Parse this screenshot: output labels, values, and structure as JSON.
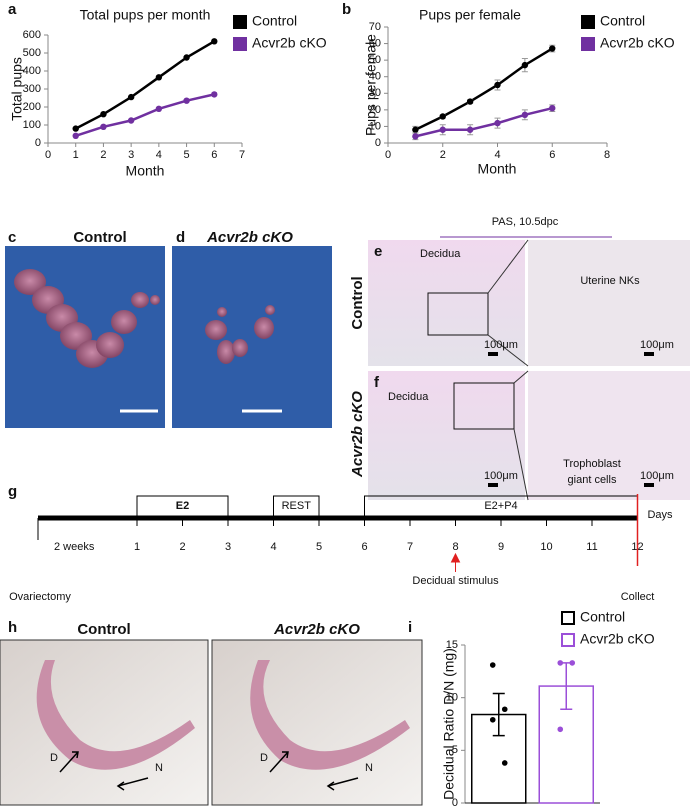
{
  "chart_data": [
    {
      "type": "line",
      "panel": "a",
      "title": "Total pups per month",
      "xlabel": "Month",
      "ylabel": "Total pups",
      "x": [
        1,
        2,
        3,
        4,
        5,
        6
      ],
      "xlim": [
        0,
        7
      ],
      "xticks": [
        0,
        1,
        2,
        3,
        4,
        5,
        6,
        7
      ],
      "ylim": [
        0,
        600
      ],
      "yticks": [
        0,
        100,
        200,
        300,
        400,
        500,
        600
      ],
      "series": [
        {
          "name": "Control",
          "color": "#000000",
          "values": [
            80,
            160,
            255,
            365,
            475,
            565
          ]
        },
        {
          "name": "Acvr2b cKO",
          "color": "#7030a0",
          "values": [
            40,
            90,
            125,
            190,
            235,
            270
          ]
        }
      ]
    },
    {
      "type": "line",
      "panel": "b",
      "title": "Pups per female",
      "xlabel": "Month",
      "ylabel": "Pups per female",
      "x": [
        1,
        2,
        3,
        4,
        5,
        6
      ],
      "xlim": [
        0,
        8
      ],
      "xticks": [
        0,
        2,
        4,
        6,
        8
      ],
      "ylim": [
        0,
        70
      ],
      "yticks": [
        0,
        10,
        20,
        30,
        40,
        50,
        60,
        70
      ],
      "series": [
        {
          "name": "Control",
          "color": "#000000",
          "values": [
            8,
            16,
            25,
            35,
            47,
            57
          ],
          "errors": [
            2,
            1,
            1,
            3,
            4,
            2
          ]
        },
        {
          "name": "Acvr2b cKO",
          "color": "#7030a0",
          "values": [
            4,
            8,
            8,
            12,
            17,
            21
          ],
          "errors": [
            2,
            3,
            3,
            3,
            3,
            2
          ]
        }
      ]
    },
    {
      "type": "bar",
      "panel": "i",
      "ylabel": "Decidual Ratio D/N (mg)",
      "ylim": [
        0,
        15
      ],
      "yticks": [
        0,
        5,
        10,
        15
      ],
      "series": [
        {
          "name": "Control",
          "color": "#000000",
          "values": [
            8.4
          ],
          "errors": [
            2.0
          ],
          "points": [
            13.1,
            8.9,
            7.9,
            3.8
          ]
        },
        {
          "name": "Acvr2b cKO",
          "color": "#9b4fd8",
          "values": [
            11.1
          ],
          "errors": [
            2.2
          ],
          "points": [
            13.3,
            13.3,
            7.0
          ]
        }
      ]
    }
  ],
  "uterus_photos": [
    {
      "panel": "c",
      "title": "Control"
    },
    {
      "panel": "d",
      "title": "Acvr2b cKO"
    }
  ],
  "histology": {
    "title": "PAS, 10.5dpc",
    "scale_label": "100μm",
    "rows": [
      {
        "panel": "e",
        "genotype": "Control",
        "region": "Decidua",
        "detail": [
          "Uterine NKs"
        ]
      },
      {
        "panel": "f",
        "genotype": "Acvr2b cKO",
        "region": "Decidua",
        "detail": [
          "Trophoblast",
          "giant cells"
        ]
      }
    ]
  },
  "timeline": {
    "panel": "g",
    "pre_label": "2 weeks",
    "unit": "Days",
    "days": [
      1,
      2,
      3,
      4,
      5,
      6,
      7,
      8,
      9,
      10,
      11,
      12
    ],
    "phases": [
      {
        "label": "E2",
        "start": 1,
        "end": 3
      },
      {
        "label": "REST",
        "start": 4,
        "end": 5
      },
      {
        "label": "E2+P4",
        "start": 6,
        "end": 12
      }
    ],
    "start_event": "Ovariectomy",
    "stimulus": {
      "label": "Decidual stimulus",
      "day": 8
    },
    "collect": {
      "label": "Collect",
      "day": 12
    }
  },
  "decidua_photos": {
    "panel": "h",
    "titles": [
      "Control",
      "Acvr2b cKO"
    ],
    "marks": [
      "D",
      "N"
    ]
  }
}
